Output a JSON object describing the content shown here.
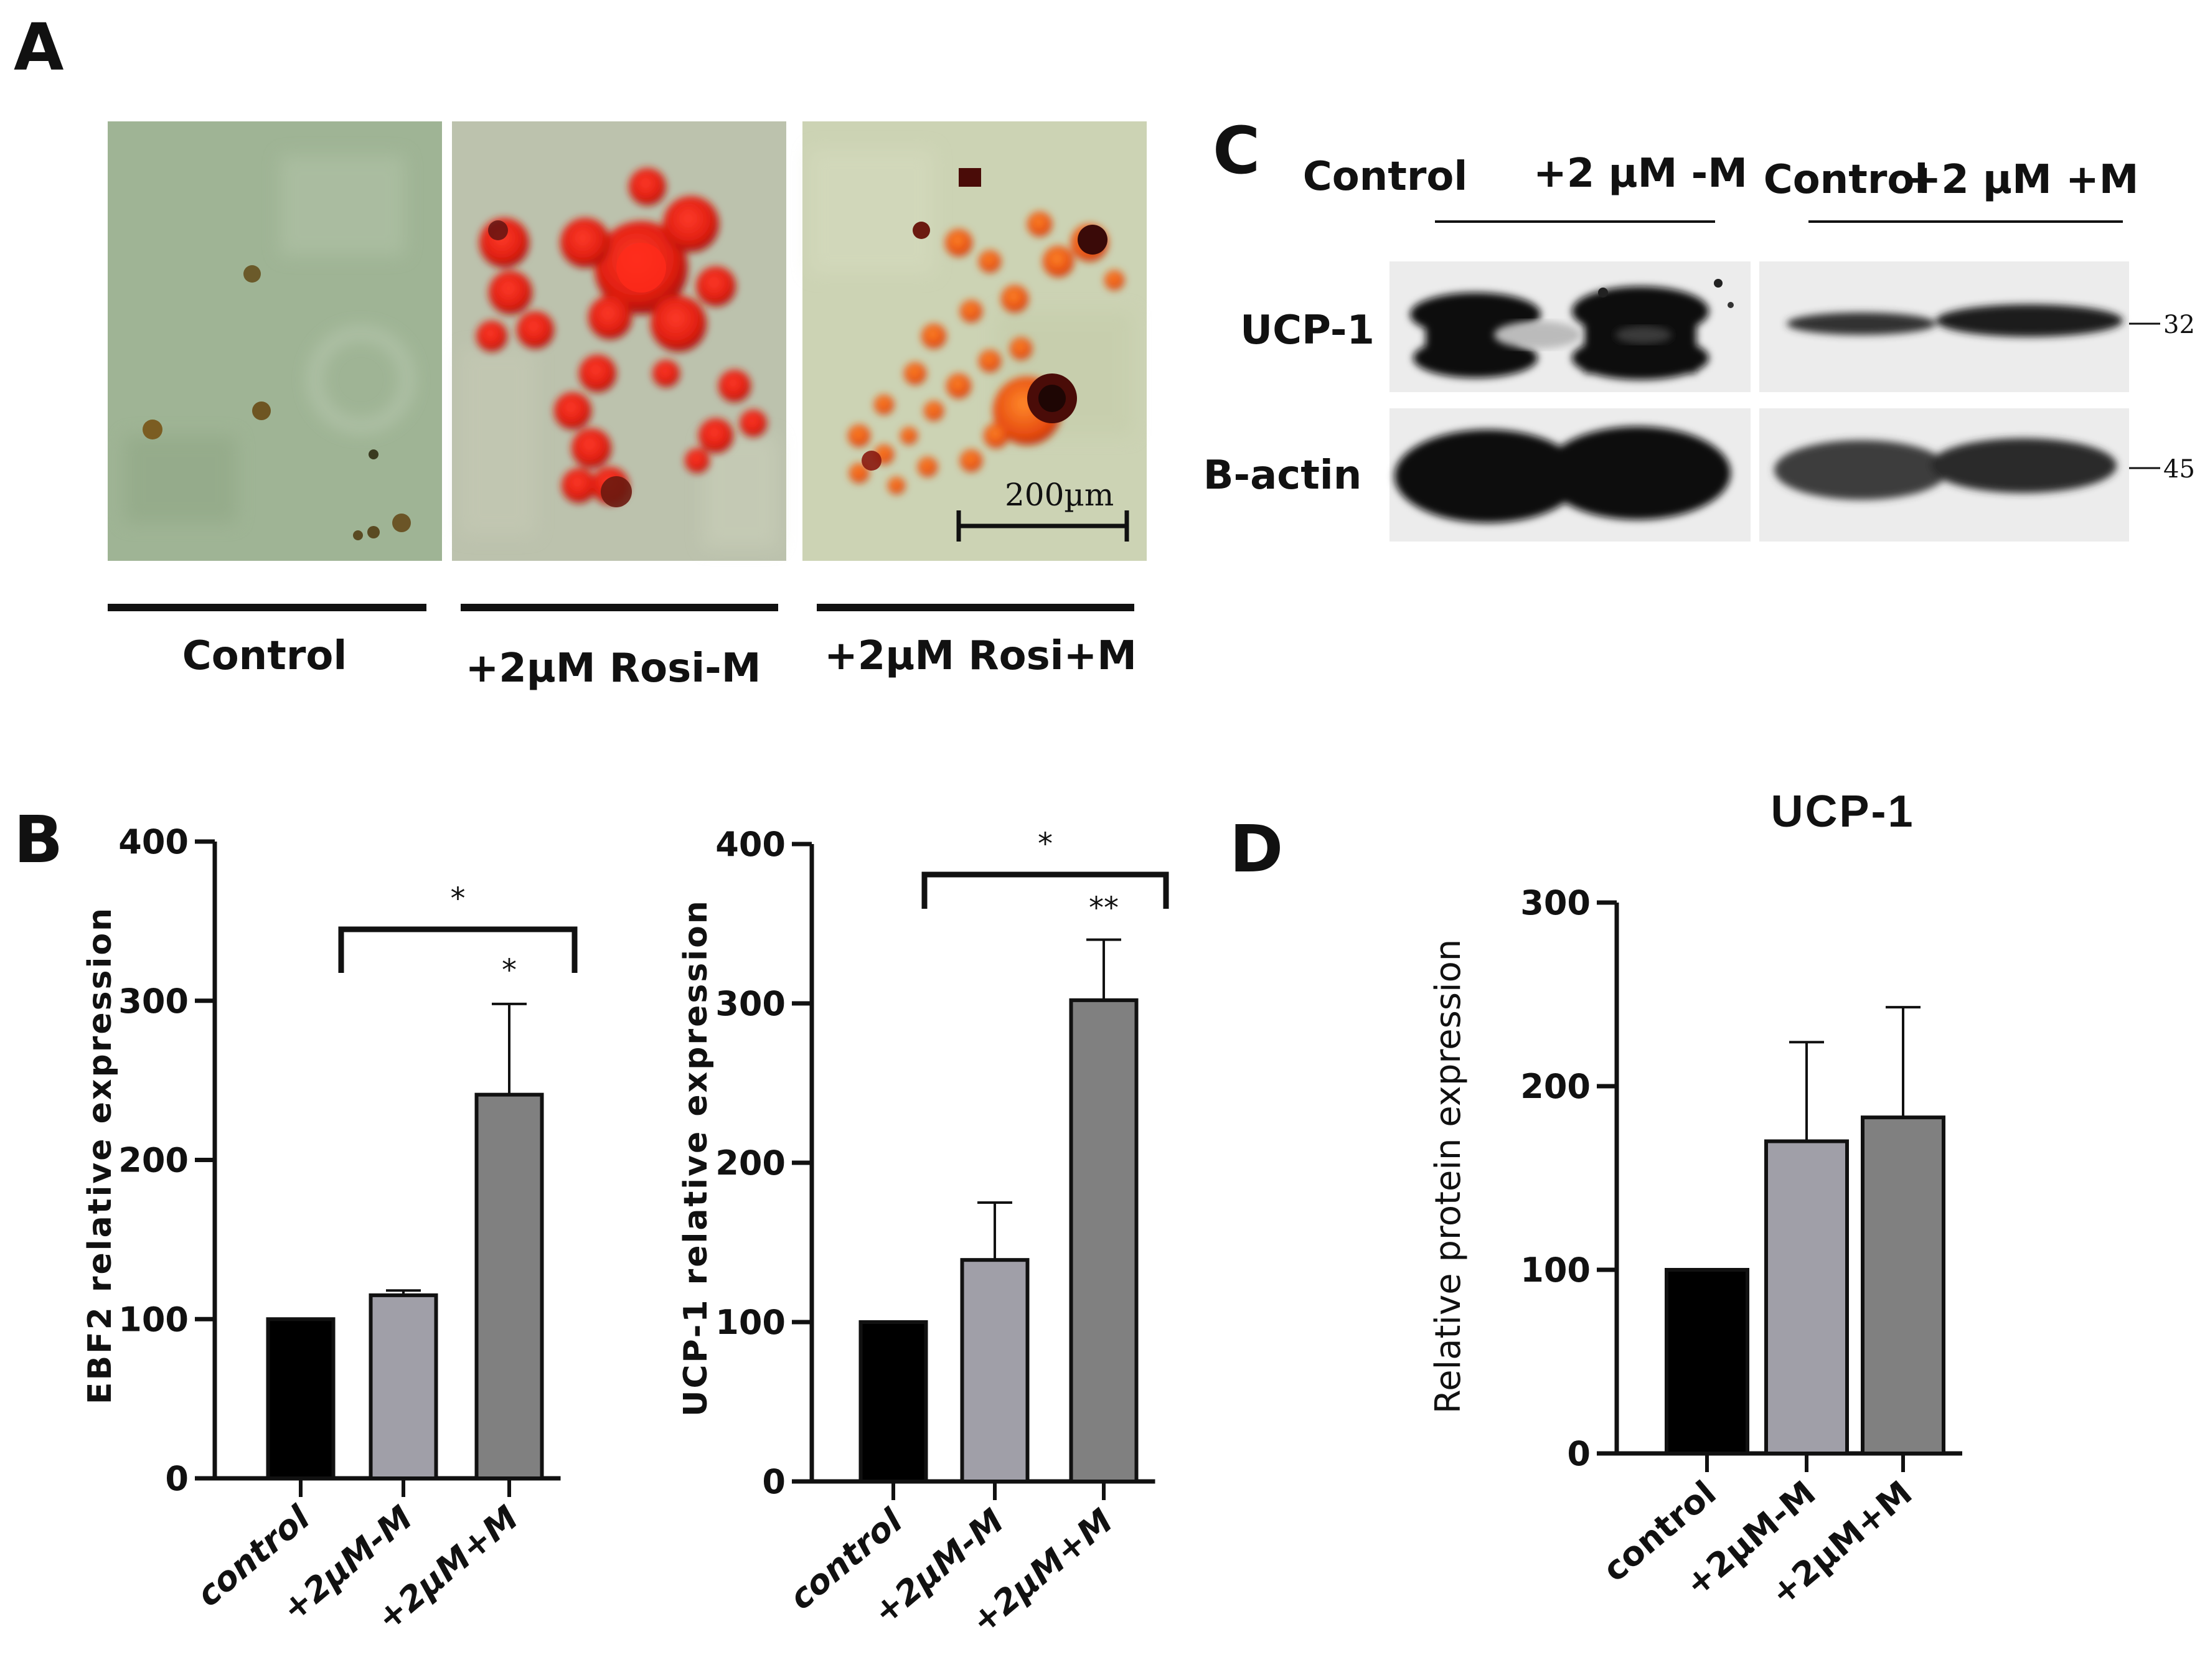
{
  "panels": {
    "a": "A",
    "b": "B",
    "c": "C",
    "d": "D"
  },
  "micrographs": {
    "captions": [
      "Control",
      "+2µM Rosi-M",
      "+2µM Rosi+M"
    ],
    "scale_bar": "200µm"
  },
  "western_blot": {
    "lane_groups": [
      {
        "lanes": [
          "Control",
          "+2 µM -M"
        ]
      },
      {
        "lanes": [
          "Control",
          "+2 µM +M"
        ]
      }
    ],
    "rows": [
      "UCP-1",
      "B-actin"
    ],
    "markers": [
      "32",
      "45"
    ]
  },
  "colors": {
    "control": "#000000",
    "minus_m": "#a09fa8",
    "plus_m": "#808080"
  },
  "chart_data": [
    {
      "type": "bar",
      "title": "",
      "categories": [
        "control",
        "+2µM-M",
        "+2µM+M"
      ],
      "values": [
        100,
        115,
        241
      ],
      "errors": [
        0,
        3,
        57
      ],
      "ylabel": "EBF2 relative expression",
      "ylim": [
        0,
        400
      ],
      "yticks": [
        "0",
        "100",
        "200",
        "300",
        "400"
      ],
      "significance": {
        "bracket": "*",
        "bar": "*"
      }
    },
    {
      "type": "bar",
      "title": "",
      "categories": [
        "control",
        "+2µM-M",
        "+2µM+M"
      ],
      "values": [
        100,
        139,
        302
      ],
      "errors": [
        0,
        36,
        38
      ],
      "ylabel": "UCP-1 relative expression",
      "ylim": [
        0,
        400
      ],
      "yticks": [
        "0",
        "100",
        "200",
        "300",
        "400"
      ],
      "significance": {
        "bracket": "*",
        "bar": "**"
      }
    },
    {
      "type": "bar",
      "title": "UCP-1",
      "categories": [
        "control",
        "+2µM-M",
        "+2µM+M"
      ],
      "values": [
        100,
        170,
        183
      ],
      "errors": [
        0,
        54,
        60
      ],
      "ylabel": "Relative protein expression",
      "ylim": [
        0,
        300
      ],
      "yticks": [
        "0",
        "100",
        "200",
        "300"
      ]
    }
  ]
}
